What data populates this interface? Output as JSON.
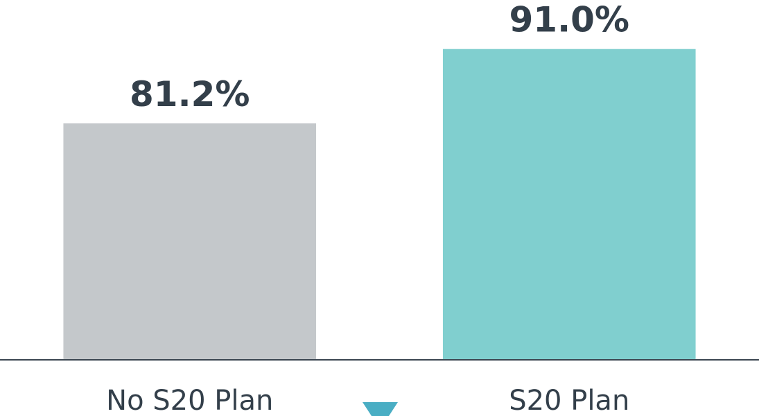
{
  "chart_data": {
    "type": "bar",
    "categories": [
      "No S20 Plan",
      "S20 Plan"
    ],
    "values": [
      81.2,
      91.0
    ],
    "value_labels": [
      "81.2%",
      "91.0%"
    ],
    "colors": [
      "#c4c8cb",
      "#80cfcf"
    ],
    "ylim": [
      50,
      95
    ]
  }
}
